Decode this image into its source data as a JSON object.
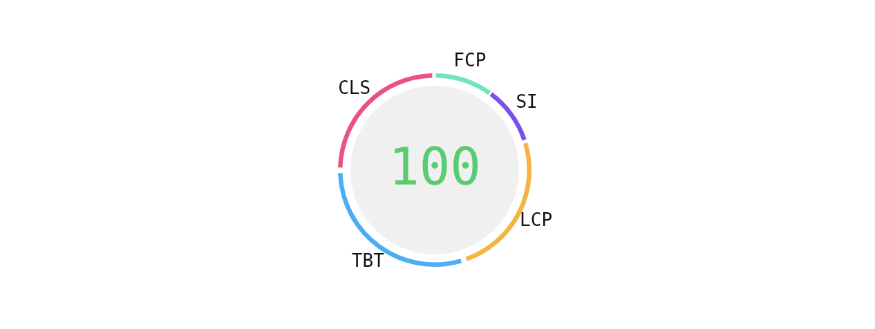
{
  "chart_data": {
    "type": "donut",
    "categories": [
      "FCP",
      "SI",
      "LCP",
      "TBT",
      "CLS"
    ],
    "values": [
      10,
      10,
      25,
      30,
      25
    ],
    "colors": [
      "#6de6b9",
      "#7a4ff0",
      "#f4b443",
      "#4dadf3",
      "#e9537f"
    ],
    "annotations": [
      "100"
    ],
    "legend": false
  }
}
